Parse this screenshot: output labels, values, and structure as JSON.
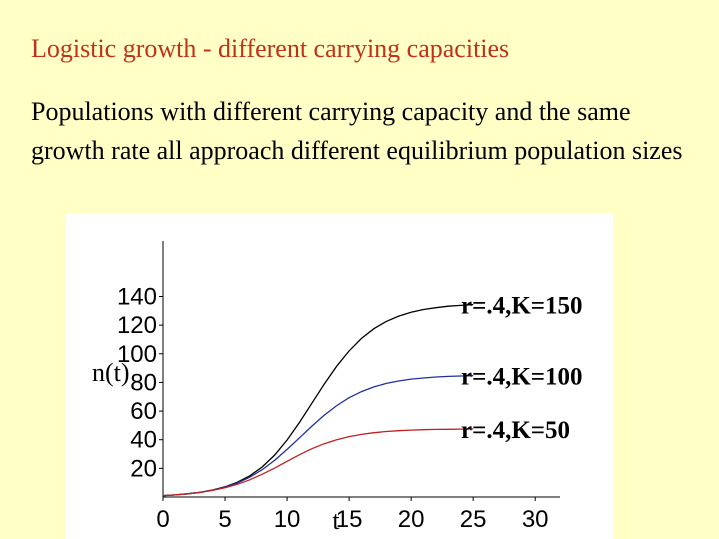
{
  "slide": {
    "title": "Logistic growth - different carrying capacities",
    "body": "Populations with different carrying capacity and the same growth rate all approach different equilibrium population sizes",
    "title_color": "#c0301a",
    "background_color": "#ffffc6"
  },
  "chart_data": {
    "type": "line",
    "title": "",
    "xlabel": "t",
    "ylabel": "n(t)",
    "xlim": [
      0,
      32
    ],
    "ylim": [
      0,
      155
    ],
    "x_ticks": [
      0,
      5,
      10,
      15,
      20,
      25,
      30
    ],
    "y_ticks": [
      20,
      40,
      60,
      80,
      100,
      120,
      140
    ],
    "grid": false,
    "x": [
      0,
      1,
      2,
      3,
      4,
      5,
      6,
      7,
      8,
      9,
      10,
      11,
      12,
      13,
      14,
      15,
      16,
      17,
      18,
      19,
      20,
      21,
      22,
      23,
      24,
      25
    ],
    "series": [
      {
        "name": "r=.4,K=150",
        "color": "#000000",
        "values": [
          1,
          1.5,
          2.2,
          3.3,
          4.9,
          7.1,
          10.3,
          14.8,
          21,
          29.3,
          39.8,
          52.1,
          65.5,
          78.9,
          91.3,
          102,
          110.7,
          117.5,
          122.6,
          126.3,
          129,
          130.9,
          132.2,
          133.2,
          133.8,
          134.3
        ]
      },
      {
        "name": "r=.4,K=100",
        "color": "#2030a0",
        "values": [
          1,
          1.5,
          2.2,
          3.2,
          4.8,
          6.9,
          9.8,
          13.8,
          19.1,
          25.6,
          33.2,
          41.3,
          49.5,
          57.2,
          63.8,
          69.3,
          73.6,
          76.9,
          79.3,
          81,
          82.3,
          83.1,
          83.8,
          84.2,
          84.5,
          84.7
        ]
      },
      {
        "name": "r=.4,K=50",
        "color": "#c02020",
        "values": [
          1,
          1.5,
          2.2,
          3.2,
          4.6,
          6.4,
          8.9,
          12,
          15.9,
          20.2,
          24.9,
          29.5,
          33.7,
          37.2,
          40,
          42.2,
          43.7,
          44.9,
          45.7,
          46.3,
          46.7,
          47,
          47.2,
          47.3,
          47.4,
          47.5
        ]
      }
    ],
    "annotations": [
      "r=.4,K=150",
      "r=.4,K=100",
      "r=.4,K=50"
    ]
  }
}
